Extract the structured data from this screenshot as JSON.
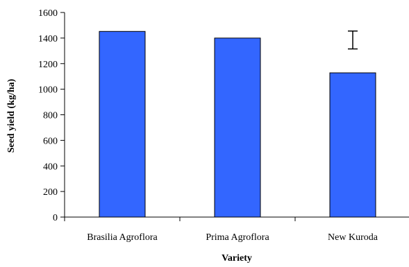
{
  "chart_data": {
    "type": "bar",
    "categories": [
      "Brasilia Agroflora",
      "Prima Agroflora",
      "New Kuroda"
    ],
    "values": [
      1452,
      1400,
      1128
    ],
    "xlabel": "Variety",
    "ylabel": "Seed yield (kg/ha)",
    "ylim": [
      0,
      1600
    ],
    "yticks": [
      "0",
      "200",
      "400",
      "600",
      "800",
      "1000",
      "1200",
      "1400",
      "1600"
    ],
    "error_bar": {
      "low": 1315,
      "high": 1455
    },
    "bar_color": "#3366FF",
    "grid": false
  }
}
